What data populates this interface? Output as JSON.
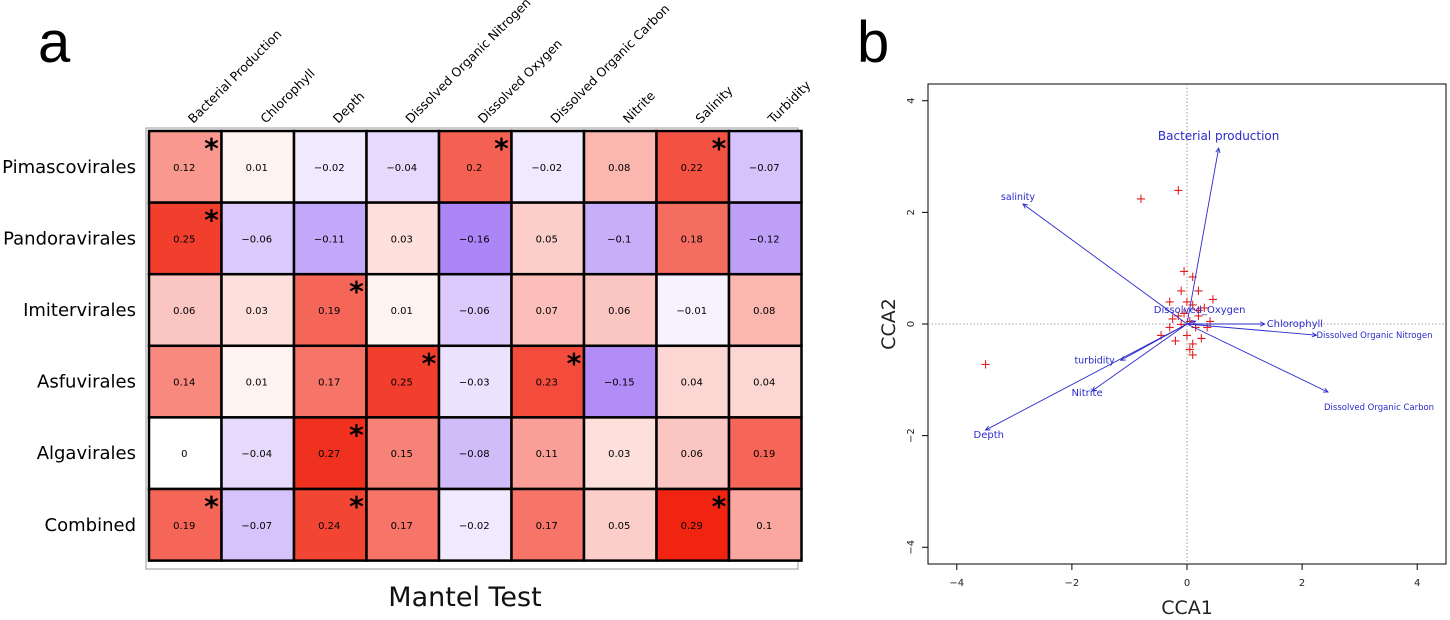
{
  "chart_data": [
    {
      "panel": "a",
      "type": "heatmap",
      "title": "",
      "xlabel": "Mantel Test",
      "columns": [
        "Bacterial Production",
        "Chlorophyll",
        "Depth",
        "Dissolved Organic Nitrogen",
        "Dissolved Oxygen",
        "Dissolved Organic Carbon",
        "Nitrite",
        "Salinity",
        "Turbidity"
      ],
      "rows": [
        "Pimascovirales",
        "Pandoravirales",
        "Imitervirales",
        "Asfuvirales",
        "Algavirales",
        "Combined"
      ],
      "values": [
        [
          0.12,
          0.01,
          -0.02,
          -0.04,
          0.2,
          -0.02,
          0.08,
          0.22,
          -0.07
        ],
        [
          0.25,
          -0.06,
          -0.11,
          0.03,
          -0.16,
          0.05,
          -0.1,
          0.18,
          -0.12
        ],
        [
          0.06,
          0.03,
          0.19,
          0.01,
          -0.06,
          0.07,
          0.06,
          -0.01,
          0.08
        ],
        [
          0.14,
          0.01,
          0.17,
          0.25,
          -0.03,
          0.23,
          -0.15,
          0.04,
          0.04
        ],
        [
          0,
          -0.04,
          0.27,
          0.15,
          -0.08,
          0.11,
          0.03,
          0.06,
          0.19
        ],
        [
          0.19,
          -0.07,
          0.24,
          0.17,
          -0.02,
          0.17,
          0.05,
          0.29,
          0.1
        ]
      ],
      "significant": [
        [
          true,
          false,
          false,
          false,
          true,
          false,
          false,
          true,
          false
        ],
        [
          true,
          false,
          false,
          false,
          false,
          false,
          false,
          false,
          false
        ],
        [
          false,
          false,
          true,
          false,
          false,
          false,
          false,
          false,
          false
        ],
        [
          false,
          false,
          false,
          true,
          false,
          true,
          false,
          false,
          false
        ],
        [
          false,
          false,
          true,
          false,
          false,
          false,
          false,
          false,
          false
        ],
        [
          true,
          false,
          true,
          false,
          false,
          false,
          false,
          true,
          false
        ]
      ],
      "significance_marker": "*",
      "color_scale": {
        "negative": "#9b6cf5",
        "zero": "#ffffff",
        "positive": "#f01e0a",
        "min": -0.2,
        "max": 0.3
      }
    },
    {
      "panel": "b",
      "type": "scatter",
      "title": "",
      "xlabel": "CCA1",
      "ylabel": "CCA2",
      "xlim": [
        -4.5,
        4.5
      ],
      "ylim": [
        -4.3,
        4.3
      ],
      "xticks": [
        -4,
        -2,
        0,
        2,
        4
      ],
      "yticks": [
        -4,
        -2,
        0,
        2,
        4
      ],
      "site_marker": "+",
      "site_color": "#e02020",
      "vector_color": "#2a2acc",
      "sites": [
        [
          -0.8,
          2.25
        ],
        [
          -0.15,
          2.4
        ],
        [
          -0.05,
          0.95
        ],
        [
          0.1,
          0.85
        ],
        [
          -0.1,
          0.6
        ],
        [
          0.2,
          0.6
        ],
        [
          0.45,
          0.45
        ],
        [
          -0.3,
          0.4
        ],
        [
          0.1,
          0.35
        ],
        [
          0.3,
          0.3
        ],
        [
          -0.05,
          0.2
        ],
        [
          0.2,
          0.15
        ],
        [
          -0.25,
          0.1
        ],
        [
          0.05,
          0.05
        ],
        [
          -0.1,
          0.0
        ],
        [
          0.15,
          -0.05
        ],
        [
          0.35,
          -0.05
        ],
        [
          -0.45,
          -0.2
        ],
        [
          0.0,
          -0.2
        ],
        [
          0.25,
          -0.25
        ],
        [
          -0.2,
          -0.3
        ],
        [
          0.1,
          -0.35
        ],
        [
          0.05,
          -0.45
        ],
        [
          0.1,
          -0.55
        ],
        [
          -3.5,
          -0.72
        ],
        [
          0.4,
          0.05
        ],
        [
          -0.3,
          -0.05
        ],
        [
          0.2,
          0.25
        ],
        [
          -0.15,
          0.15
        ],
        [
          0.0,
          0.4
        ]
      ],
      "vectors": [
        {
          "name": "Bacterial production",
          "x": 0.55,
          "y": 3.15
        },
        {
          "name": "salinity",
          "x": -2.85,
          "y": 2.15
        },
        {
          "name": "Dissolved_Oxygen",
          "x": 0.15,
          "y": 0.05
        },
        {
          "name": "Chlorophyll",
          "x": 1.35,
          "y": 0.0
        },
        {
          "name": "Dissolved Organic Nitrogen",
          "x": 2.25,
          "y": -0.2
        },
        {
          "name": "turbidity",
          "x": -1.15,
          "y": -0.65
        },
        {
          "name": "Nitrite",
          "x": -1.65,
          "y": -1.2
        },
        {
          "name": "Dissolved Organic Carbon",
          "x": 2.45,
          "y": -1.22
        },
        {
          "name": "Depth",
          "x": -3.5,
          "y": -1.9
        }
      ]
    }
  ],
  "labels": {
    "panel_a": "a",
    "panel_b": "b"
  }
}
